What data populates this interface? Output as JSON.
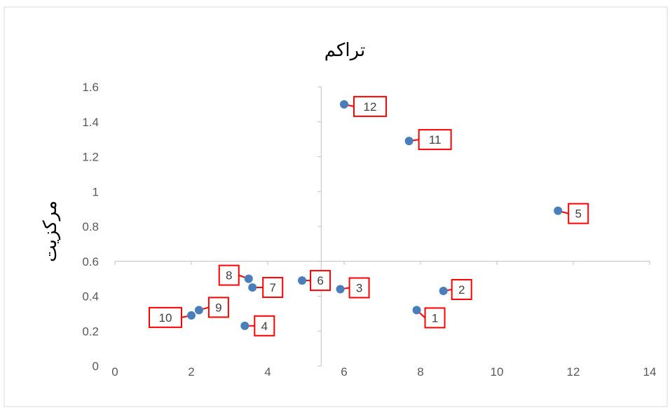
{
  "chart_data": {
    "type": "scatter",
    "title": "تراکم",
    "xlabel": "",
    "ylabel": "مرکزیت",
    "xlim": [
      0,
      14
    ],
    "ylim": [
      0,
      1.6
    ],
    "x_ticks": [
      "0",
      "2",
      "4",
      "6",
      "8",
      "10",
      "12",
      "14"
    ],
    "y_ticks": [
      "0",
      "0.2",
      "0.4",
      "0.6",
      "0.8",
      "1",
      "1.2",
      "1.4",
      "1.6"
    ],
    "vertical_axis_at_x": 5.4,
    "horizontal_axis_at_y": 0.6,
    "grid": false,
    "legend": "none",
    "marker_color": "#4a7ebb",
    "label_border_color": "#ff0000",
    "points": [
      {
        "label": "1",
        "x": 7.9,
        "y": 0.32
      },
      {
        "label": "2",
        "x": 8.6,
        "y": 0.43
      },
      {
        "label": "3",
        "x": 5.9,
        "y": 0.44
      },
      {
        "label": "4",
        "x": 3.4,
        "y": 0.23
      },
      {
        "label": "5",
        "x": 11.6,
        "y": 0.89
      },
      {
        "label": "6",
        "x": 4.9,
        "y": 0.49
      },
      {
        "label": "7",
        "x": 3.6,
        "y": 0.45
      },
      {
        "label": "8",
        "x": 3.5,
        "y": 0.5
      },
      {
        "label": "9",
        "x": 2.2,
        "y": 0.32
      },
      {
        "label": "10",
        "x": 2.0,
        "y": 0.29
      },
      {
        "label": "11",
        "x": 7.7,
        "y": 1.29
      },
      {
        "label": "12",
        "x": 6.0,
        "y": 1.5
      }
    ]
  }
}
